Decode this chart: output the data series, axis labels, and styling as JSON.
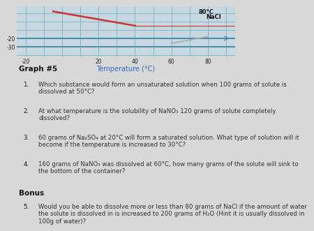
{
  "background_color": "#d8d8d8",
  "chart_bg": "#c8d8e0",
  "grid_color": "#7ab0c8",
  "axis_color": "#4a8ab0",
  "tick_label_color": "#222222",
  "annotation_color": "#111111",
  "text_color": "#333333",
  "title_color": "#3366cc",
  "bold_color": "#111111",
  "x_ticks": [
    -20,
    20,
    40,
    60,
    80
  ],
  "x_label": "Temperature (°C)",
  "annotation_80": "80°C",
  "annotation_NaCl": "NaCl",
  "graph_title": "Graph #5",
  "q1_num": "1.",
  "q1_text": "Which substance would form an unsaturated solution when 100 grams of solute is\ndissolved at 50°C?",
  "q2_num": "2.",
  "q2_text": "At what temperature is the solubility of NaNO₃ 120 grams of solute completely\ndissolved?",
  "q3_num": "3.",
  "q3_text": "60 grams of Na₂SO₄ at 20°C will form a saturated solution. What type of solution will it\nbecome if the temperature is increased to 30°C?",
  "q4_num": "4.",
  "q4_text": "160 grams of NaNO₃ was dissolved at 60°C, how many grams of the solute will sink to\nthe bottom of the container?",
  "bonus_title": "Bonus",
  "q5_num": "5.",
  "q5_text": "Would you be able to dissolve more or less than 80 grams of NaCl if the amount of water\nthe solute is dissolved in is increased to 200 grams of H₂O (Hint it is usually dissolved in\n100g of water)?"
}
